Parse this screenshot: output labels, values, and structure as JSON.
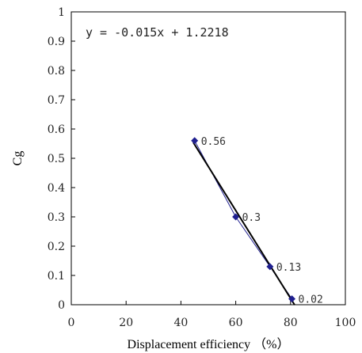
{
  "chart_data": {
    "type": "scatter",
    "xlabel": "Displacement efficiency （%）",
    "ylabel": "Cg",
    "xlim": [
      0,
      100
    ],
    "ylim": [
      0,
      1
    ],
    "x_ticks": [
      "0",
      "20",
      "40",
      "60",
      "80",
      "100"
    ],
    "y_ticks": [
      "0",
      "0.1",
      "0.2",
      "0.3",
      "0.4",
      "0.5",
      "0.6",
      "0.7",
      "0.8",
      "0.9",
      "1"
    ],
    "grid": false,
    "series": [
      {
        "x": [
          45,
          60,
          72.5,
          80.5
        ],
        "y": [
          0.56,
          0.3,
          0.13,
          0.02
        ],
        "labels": [
          "0.56",
          "0.3",
          "0.13",
          "0.02"
        ],
        "marker": "diamond",
        "color": "#1f1f8f"
      }
    ],
    "trendline": {
      "equation": "y = -0.015x + 1.2218",
      "slope": -0.015,
      "intercept": 1.2218,
      "x_range": [
        44.5,
        81.5
      ],
      "color": "#000000"
    }
  }
}
